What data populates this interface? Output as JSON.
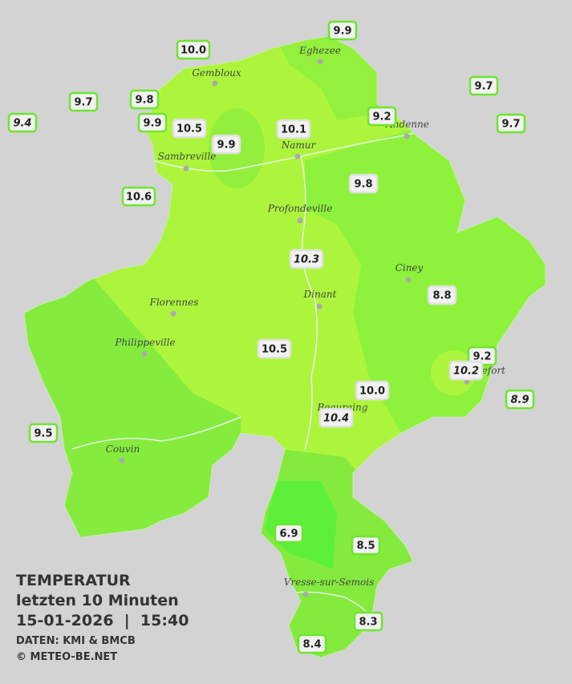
{
  "legend": {
    "title": "TEMPERATUR",
    "subtitle": "letzten 10 Minuten",
    "datetime": "15-01-2026  |  15:40",
    "source": "DATEN: KMI & BMCB",
    "copyright": "© METEO-BE.NET"
  },
  "towns": [
    "Eghezee",
    "Gembloux",
    "Andenne",
    "Namur",
    "Sambreville",
    "Profondeville",
    "Ciney",
    "Dinant",
    "Florennes",
    "Philippeville",
    "Rochefort",
    "Beauraing",
    "Couvin",
    "Vresse-sur-Semois"
  ],
  "stations": [
    {
      "value": "9.9"
    },
    {
      "value": "10.0"
    },
    {
      "value": "9.7"
    },
    {
      "value": "9.7"
    },
    {
      "value": "9.8"
    },
    {
      "value": "9.2"
    },
    {
      "value": "9.4",
      "italic": true
    },
    {
      "value": "9.9"
    },
    {
      "value": "9.7"
    },
    {
      "value": "10.5"
    },
    {
      "value": "10.1"
    },
    {
      "value": "9.9"
    },
    {
      "value": "9.8"
    },
    {
      "value": "10.6"
    },
    {
      "value": "10.3",
      "italic": true
    },
    {
      "value": "8.8"
    },
    {
      "value": "10.5"
    },
    {
      "value": "9.2"
    },
    {
      "value": "10.2",
      "italic": true
    },
    {
      "value": "10.0"
    },
    {
      "value": "8.9",
      "italic": true
    },
    {
      "value": "10.4",
      "italic": true
    },
    {
      "value": "9.5"
    },
    {
      "value": "6.9"
    },
    {
      "value": "8.5"
    },
    {
      "value": "8.3"
    },
    {
      "value": "8.4"
    }
  ]
}
